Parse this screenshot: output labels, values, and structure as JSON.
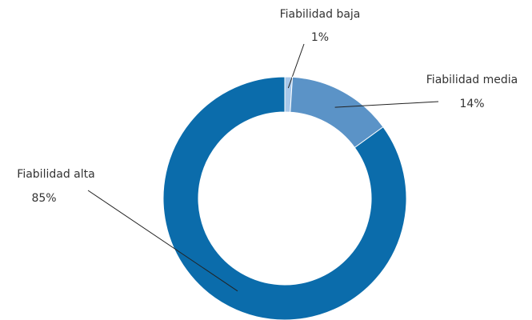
{
  "chart_data": {
    "type": "donut",
    "categories": [
      "Fiabilidad baja",
      "Fiabilidad media",
      "Fiabilidad alta"
    ],
    "values": [
      1,
      14,
      85
    ],
    "value_labels": [
      "1%",
      "14%",
      "85%"
    ],
    "colors": [
      "#a8c8ea",
      "#5b93c7",
      "#0b6cab"
    ]
  }
}
